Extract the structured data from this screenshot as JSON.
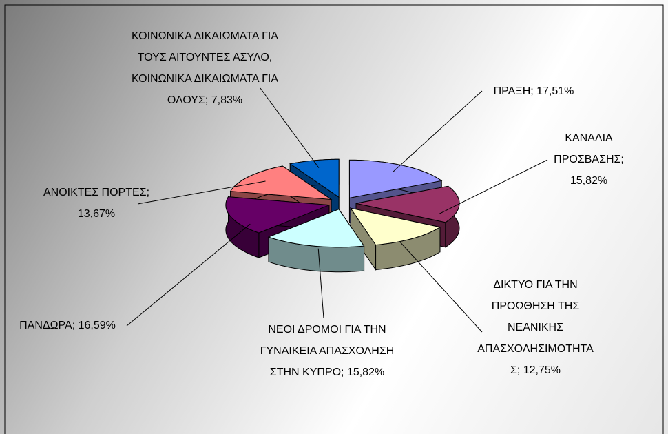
{
  "chart_data": {
    "type": "pie3d",
    "values": [
      17.51,
      15.82,
      12.75,
      15.82,
      16.59,
      13.67,
      7.83
    ],
    "value_labels": [
      "ΠΡΑΞΗ; 17,51%",
      "ΚΑΝΑΛΙΑ ΠΡΟΣΒΑΣΗΣ; 15,82%",
      "ΔΙΚΤΥΟ ΓΙΑ ΤΗΝ ΠΡΟΩΘΗΣΗ ΤΗΣ ΝΕΑΝΙΚΗΣ ΑΠΑΣΧΟΛΗΣΙΜΟΤΗΤΑΣ; 12,75%",
      "ΝΕΟΙ ΔΡΟΜΟΙ ΓΙΑ ΤΗΝ ΓΥΝΑΙΚΕΙΑ ΑΠΑΣΧΟΛΗΣΗ ΣΤΗΝ ΚΥΠΡΟ; 15,82%",
      "ΠΑΝΔΩΡΑ; 16,59%",
      "ΑΝΟΙΚΤΕΣ ΠΟΡΤΕΣ; 13,67%",
      "ΚΟΙΝΩΝΙΚΑ ΔΙΚΑΙΩΜΑΤΑ ΓΙΑ ΤΟΥΣ ΑΙΤΟΥΝΤΕΣ ΑΣΥΛΟ, ΚΟΙΝΩΝΙΚΑ ΔΙΚΑΙΩΜΑΤΑ ΓΙΑ ΟΛΟΥΣ; 7,83%"
    ],
    "colors": [
      "#9999ff",
      "#993366",
      "#ffffcc",
      "#ccffff",
      "#660066",
      "#ff8080",
      "#0066cc"
    ]
  }
}
